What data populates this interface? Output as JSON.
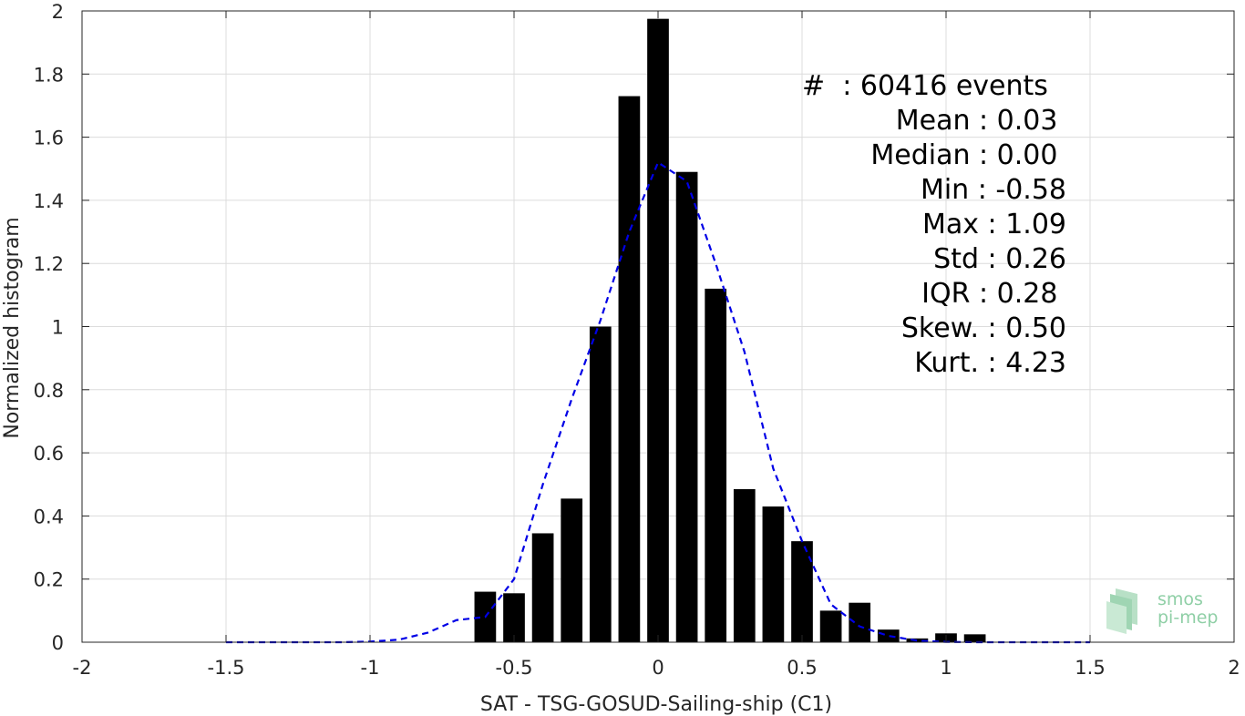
{
  "chart_data": {
    "type": "bar",
    "xlabel": "SAT - TSG-GOSUD-Sailing-ship (C1)",
    "ylabel": "Normalized histogram",
    "xlim": [
      -2,
      2
    ],
    "ylim": [
      0,
      2
    ],
    "xticks": [
      -2,
      -1.5,
      -1,
      -0.5,
      0,
      0.5,
      1,
      1.5,
      2
    ],
    "xtick_labels": [
      "-2",
      "-1.5",
      "-1",
      "-0.5",
      "0",
      "0.5",
      "1",
      "1.5",
      "2"
    ],
    "yticks": [
      0,
      0.2,
      0.4,
      0.6,
      0.8,
      1,
      1.2,
      1.4,
      1.6,
      1.8,
      2
    ],
    "ytick_labels": [
      "0",
      "0.2",
      "0.4",
      "0.6",
      "0.8",
      "1",
      "1.2",
      "1.4",
      "1.6",
      "1.8",
      "2"
    ],
    "grid": true,
    "bar_color": "#000000",
    "bar_width": 0.075,
    "bars": {
      "x": [
        -0.6,
        -0.5,
        -0.4,
        -0.3,
        -0.2,
        -0.1,
        0.0,
        0.1,
        0.2,
        0.3,
        0.4,
        0.5,
        0.6,
        0.7,
        0.8,
        0.9,
        1.0,
        1.1
      ],
      "values": [
        0.16,
        0.155,
        0.345,
        0.455,
        1.0,
        1.73,
        1.975,
        1.49,
        1.12,
        0.485,
        0.43,
        0.32,
        0.1,
        0.125,
        0.04,
        0.012,
        0.028,
        0.025
      ]
    },
    "fit_curve": {
      "style": "dashed",
      "color": "#0000e6",
      "x": [
        -1.5,
        -1.4,
        -1.3,
        -1.2,
        -1.1,
        -1.0,
        -0.9,
        -0.8,
        -0.7,
        -0.6,
        -0.5,
        -0.4,
        -0.3,
        -0.2,
        -0.1,
        0.0,
        0.1,
        0.2,
        0.3,
        0.4,
        0.5,
        0.6,
        0.7,
        0.8,
        0.9,
        1.0,
        1.1,
        1.2,
        1.3,
        1.4,
        1.5
      ],
      "y": [
        0,
        0,
        0,
        0,
        0,
        0.002,
        0.008,
        0.03,
        0.07,
        0.08,
        0.2,
        0.5,
        0.77,
        1.02,
        1.3,
        1.52,
        1.46,
        1.2,
        0.92,
        0.55,
        0.32,
        0.12,
        0.05,
        0.02,
        0.005,
        0.001,
        0,
        0,
        0,
        0,
        0
      ]
    },
    "annotations": [
      "#  : 60416 events",
      "Mean : 0.03 ",
      "Median : 0.00 ",
      "Min : -0.58",
      "Max : 1.09",
      "Std : 0.26",
      "IQR : 0.28 ",
      "Skew. : 0.50",
      "Kurt. : 4.23"
    ]
  },
  "logo": {
    "line1": "smos",
    "line2": "pi-mep",
    "color": "#8fcfa6"
  }
}
